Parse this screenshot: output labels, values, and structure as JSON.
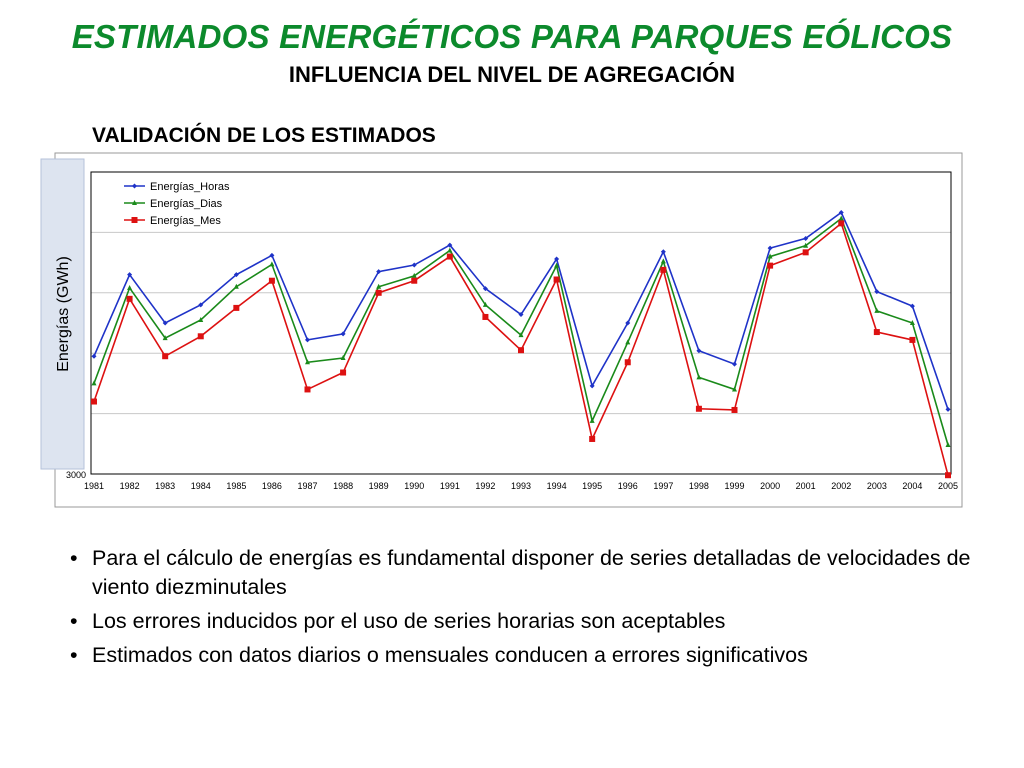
{
  "title": "ESTIMADOS ENERGÉTICOS PARA PARQUES EÓLICOS",
  "subtitle": "INFLUENCIA DEL NIVEL DE AGREGACIÓN",
  "section_title": "VALIDACIÓN DE LOS ESTIMADOS",
  "bullets": [
    "Para el cálculo de energías es fundamental disponer de series detalladas de velocidades de viento diezminutales",
    "Los errores inducidos por el uso de series horarias son aceptables",
    "Estimados con datos diarios o mensuales conducen a errores significativos"
  ],
  "chart_data": {
    "type": "line",
    "title": "",
    "xlabel": "",
    "ylabel": "Energías (GWh)",
    "x": [
      "1981",
      "1982",
      "1983",
      "1984",
      "1985",
      "1986",
      "1987",
      "1988",
      "1989",
      "1990",
      "1991",
      "1992",
      "1993",
      "1994",
      "1995",
      "1996",
      "1997",
      "1998",
      "1999",
      "2000",
      "2001",
      "2002",
      "2003",
      "2004",
      "2005"
    ],
    "y_tick_labels_visible": [
      "3000"
    ],
    "ylim": [
      3000,
      3500
    ],
    "grid": true,
    "legend_position": "top-left",
    "series": [
      {
        "name": "Energías_Horas",
        "color": "#1f33c8",
        "marker": "diamond",
        "values": [
          3195,
          3330,
          3250,
          3280,
          3330,
          3362,
          3222,
          3232,
          3335,
          3346,
          3379,
          3307,
          3264,
          3356,
          3146,
          3250,
          3368,
          3204,
          3182,
          3374,
          3390,
          3433,
          3302,
          3278,
          3107
        ]
      },
      {
        "name": "Energías_Dias",
        "color": "#1a8a1a",
        "marker": "triangle",
        "values": [
          3150,
          3308,
          3225,
          3255,
          3310,
          3347,
          3185,
          3192,
          3310,
          3328,
          3370,
          3280,
          3230,
          3345,
          3088,
          3218,
          3352,
          3160,
          3140,
          3360,
          3378,
          3423,
          3270,
          3250,
          3048
        ]
      },
      {
        "name": "Energías_Mes",
        "color": "#dd1111",
        "marker": "square",
        "values": [
          3120,
          3290,
          3195,
          3228,
          3275,
          3320,
          3140,
          3168,
          3300,
          3320,
          3360,
          3260,
          3205,
          3322,
          3058,
          3185,
          3338,
          3108,
          3106,
          3345,
          3367,
          3415,
          3235,
          3222,
          2998
        ]
      }
    ]
  }
}
